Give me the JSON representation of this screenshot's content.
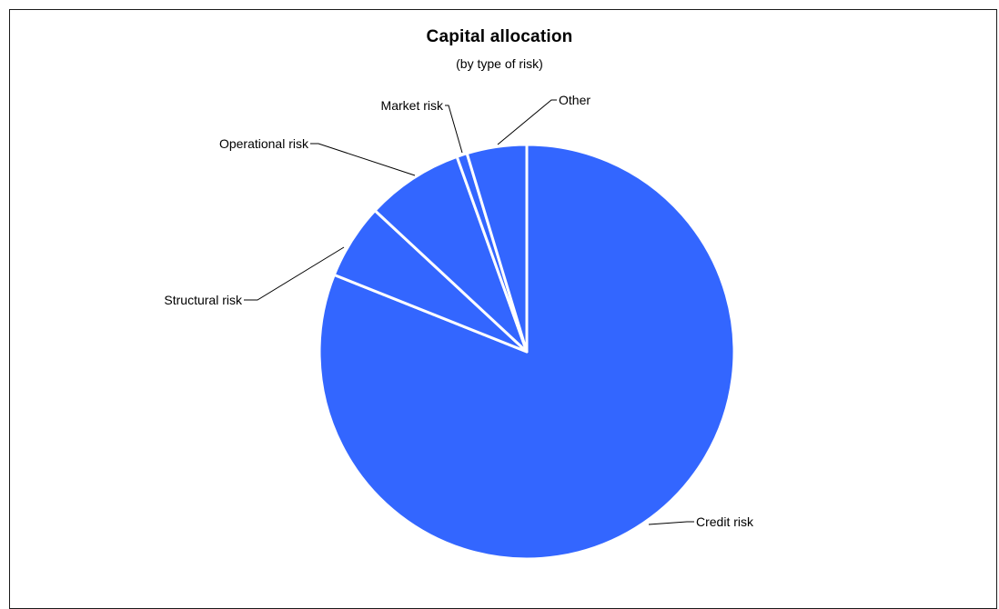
{
  "chart_data": {
    "type": "pie",
    "title": "Capital allocation",
    "subtitle": "(by type of risk)",
    "slices": [
      {
        "label": "Credit risk",
        "value": 80.0
      },
      {
        "label": "Structural risk",
        "value": 5.8
      },
      {
        "label": "Operational risk",
        "value": 7.5
      },
      {
        "label": "Market risk",
        "value": 0.8
      },
      {
        "label": "Other",
        "value": 4.6
      }
    ],
    "start_at": "12 o'clock",
    "direction": "clockwise",
    "legend": "none (leader-line labels)",
    "colors": {
      "slice": "#3366ff",
      "separator": "#ffffff",
      "leader": "#000000"
    }
  }
}
